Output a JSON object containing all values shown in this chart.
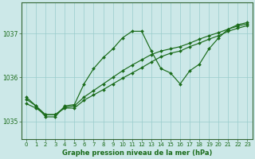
{
  "xlabel": "Graphe pression niveau de la mer (hPa)",
  "bg_color": "#cce8e8",
  "grid_color": "#99cccc",
  "line_color": "#1a6b1a",
  "x_ticks": [
    0,
    1,
    2,
    3,
    4,
    5,
    6,
    7,
    8,
    9,
    10,
    11,
    12,
    13,
    14,
    15,
    16,
    17,
    18,
    19,
    20,
    21,
    22,
    23
  ],
  "ylim": [
    1034.6,
    1037.7
  ],
  "yticks": [
    1035,
    1036,
    1037
  ],
  "y_jagged": [
    1035.55,
    1035.35,
    1035.1,
    1035.1,
    1035.35,
    1035.38,
    1035.85,
    1036.2,
    1036.45,
    1036.65,
    1036.9,
    1037.05,
    1037.05,
    1036.6,
    1036.2,
    1036.1,
    1035.85,
    1036.15,
    1036.3,
    1036.65,
    1036.9,
    1037.1,
    1037.2,
    1037.25
  ],
  "y_trend1": [
    1035.4,
    1035.3,
    1035.15,
    1035.15,
    1035.3,
    1035.3,
    1035.48,
    1035.6,
    1035.72,
    1035.85,
    1035.98,
    1036.1,
    1036.22,
    1036.35,
    1036.47,
    1036.55,
    1036.6,
    1036.7,
    1036.78,
    1036.87,
    1036.95,
    1037.05,
    1037.12,
    1037.18
  ],
  "y_trend2": [
    1035.5,
    1035.35,
    1035.15,
    1035.15,
    1035.32,
    1035.35,
    1035.55,
    1035.7,
    1035.85,
    1036.0,
    1036.15,
    1036.28,
    1036.4,
    1036.52,
    1036.6,
    1036.65,
    1036.7,
    1036.78,
    1036.87,
    1036.95,
    1037.02,
    1037.1,
    1037.17,
    1037.22
  ]
}
